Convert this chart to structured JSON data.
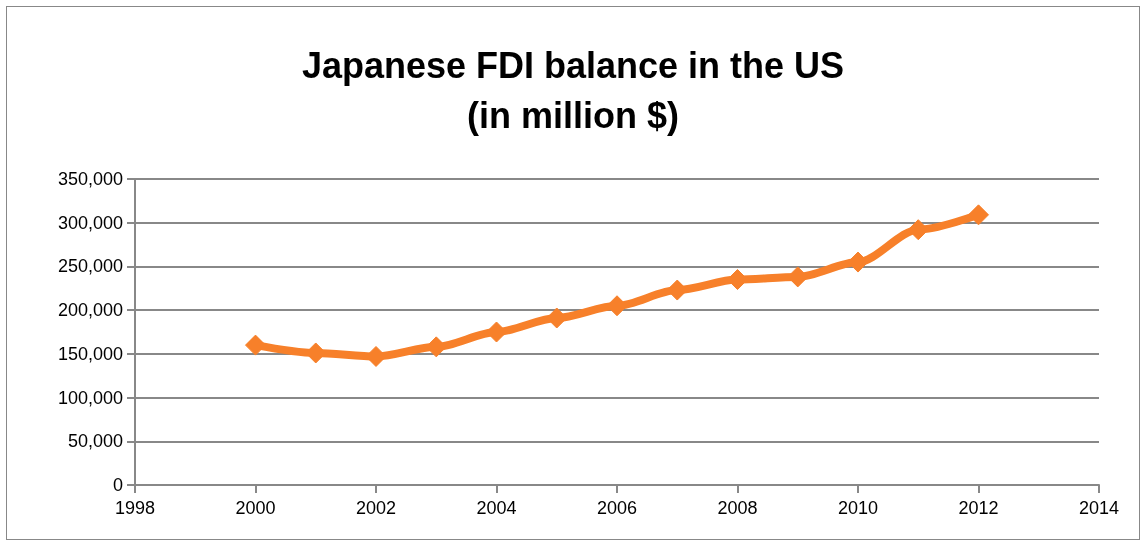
{
  "chart_data": {
    "type": "line",
    "title": "Japanese FDI balance in the US\n(in million $)",
    "x": [
      2000,
      2001,
      2002,
      2003,
      2004,
      2005,
      2006,
      2007,
      2008,
      2009,
      2010,
      2011,
      2012
    ],
    "series": [
      {
        "color": "#f7802a",
        "values": [
          160000,
          151000,
          147000,
          158000,
          175000,
          191000,
          205000,
          223000,
          235000,
          238000,
          255000,
          292000,
          309000
        ]
      }
    ],
    "xlim": [
      1998,
      2014
    ],
    "xticks": [
      1998,
      2000,
      2002,
      2004,
      2006,
      2008,
      2010,
      2012,
      2014
    ],
    "ylim": [
      0,
      350000
    ],
    "yticks": [
      0,
      {
        "value": 50000,
        "label": "50,000"
      },
      {
        "value": 100000,
        "label": "100,000"
      },
      {
        "value": 150000,
        "label": "150,000"
      },
      {
        "value": 200000,
        "label": "200,000"
      },
      {
        "value": 250000,
        "label": "250,000"
      },
      {
        "value": 300000,
        "label": "300,000"
      },
      {
        "value": 350000,
        "label": "350,000"
      }
    ],
    "grid": "y",
    "marker": "diamond",
    "line_style": "solid"
  }
}
